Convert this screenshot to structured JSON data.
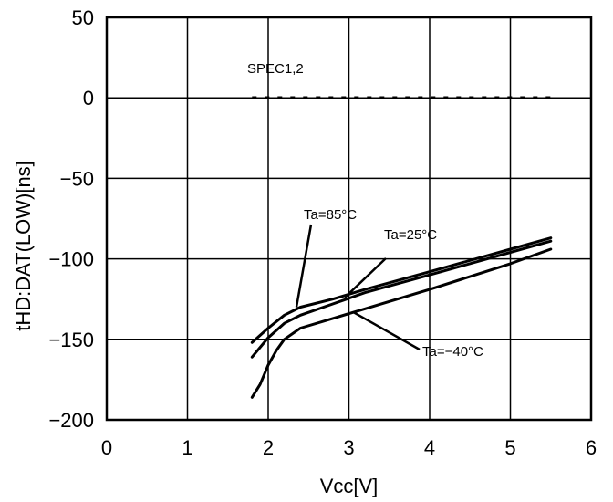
{
  "chart_data": {
    "type": "line",
    "title": "",
    "xlabel": "Vcc[V]",
    "ylabel": "tHD:DAT(LOW)[ns]",
    "xlim": [
      0,
      6
    ],
    "ylim": [
      -200,
      50
    ],
    "xticks": [
      0,
      1,
      2,
      3,
      4,
      5,
      6
    ],
    "yticks": [
      50,
      0,
      -50,
      -100,
      -150,
      -200
    ],
    "grid": true,
    "series": [
      {
        "name": "SPEC1,2",
        "style": "dashed",
        "x": [
          1.8,
          5.5
        ],
        "y": [
          0,
          0
        ]
      },
      {
        "name": "Ta=85°C",
        "style": "solid",
        "x": [
          1.8,
          2.0,
          2.2,
          2.4,
          2.8,
          3.2,
          4.0,
          5.0,
          5.5
        ],
        "y": [
          -152,
          -143,
          -135,
          -130,
          -125,
          -119,
          -108,
          -94,
          -87
        ]
      },
      {
        "name": "Ta=25°C",
        "style": "solid",
        "x": [
          1.8,
          2.0,
          2.2,
          2.4,
          2.8,
          3.2,
          4.0,
          5.0,
          5.5
        ],
        "y": [
          -161,
          -149,
          -140,
          -135,
          -128,
          -121,
          -110,
          -96,
          -89
        ]
      },
      {
        "name": "Ta=-40°C",
        "style": "solid",
        "x": [
          1.8,
          1.9,
          2.0,
          2.1,
          2.2,
          2.4,
          2.8,
          3.2,
          4.0,
          5.0,
          5.5
        ],
        "y": [
          -186,
          -178,
          -166,
          -157,
          -150,
          -143,
          -137,
          -131,
          -119,
          -103,
          -94
        ]
      }
    ],
    "annotations": [
      {
        "text": "SPEC1,2",
        "series": "SPEC1,2"
      },
      {
        "text": "Ta=85°C",
        "series": "Ta=85°C",
        "point": [
          2.35,
          -130
        ]
      },
      {
        "text": "Ta=25°C",
        "series": "Ta=25°C",
        "point": [
          2.95,
          -124
        ]
      },
      {
        "text": "Ta=−40°C",
        "series": "Ta=-40°C",
        "point": [
          3.05,
          -133
        ]
      }
    ]
  }
}
